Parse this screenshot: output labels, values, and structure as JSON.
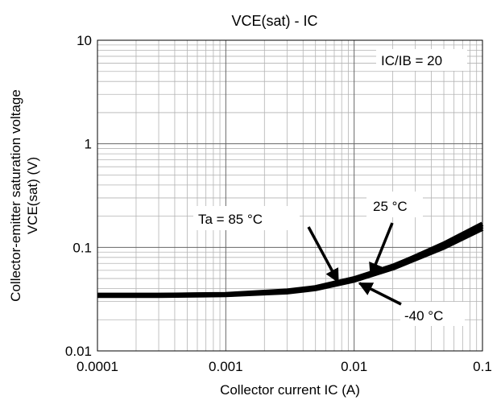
{
  "chart_data": {
    "type": "line",
    "title": "VCE(sat) - IC",
    "xlabel": "Collector current IC (A)",
    "ylabel_line1": "Collector-emitter saturation voltage",
    "ylabel_line2": "VCE(sat) (V)",
    "x_scale": "log",
    "y_scale": "log",
    "xlim": [
      0.0001,
      0.1
    ],
    "ylim": [
      0.01,
      10
    ],
    "x_ticks": [
      0.0001,
      0.001,
      0.01,
      0.1
    ],
    "x_tick_labels": [
      "0.0001",
      "0.001",
      "0.01",
      "0.1"
    ],
    "y_ticks": [
      0.01,
      0.1,
      1,
      10
    ],
    "y_tick_labels": [
      "0.01",
      "0.1",
      "1",
      "10"
    ],
    "grid": true,
    "condition_label": "IC/IB = 20",
    "series": [
      {
        "name": "Ta = 85 °C",
        "x": [
          0.0001,
          0.0003,
          0.001,
          0.003,
          0.005,
          0.01,
          0.02,
          0.05,
          0.1
        ],
        "y": [
          0.0345,
          0.0345,
          0.0352,
          0.038,
          0.041,
          0.05,
          0.066,
          0.105,
          0.16
        ]
      },
      {
        "name": "25 °C",
        "x": [
          0.0001,
          0.0003,
          0.001,
          0.003,
          0.005,
          0.01,
          0.02,
          0.05,
          0.1
        ],
        "y": [
          0.0345,
          0.0345,
          0.035,
          0.0375,
          0.0405,
          0.049,
          0.065,
          0.108,
          0.168
        ]
      },
      {
        "name": "-40 °C",
        "x": [
          0.0001,
          0.0003,
          0.001,
          0.003,
          0.005,
          0.01,
          0.02,
          0.05,
          0.1
        ],
        "y": [
          0.0342,
          0.0342,
          0.0348,
          0.037,
          0.0398,
          0.048,
          0.063,
          0.1,
          0.152
        ]
      }
    ],
    "annotations": [
      {
        "text": "Ta = 85 °C",
        "target_x": 0.0075,
        "target_y": 0.0465
      },
      {
        "text": "25 °C",
        "target_x": 0.0135,
        "target_y": 0.053
      },
      {
        "text": "-40 °C",
        "target_x": 0.011,
        "target_y": 0.045
      }
    ]
  }
}
